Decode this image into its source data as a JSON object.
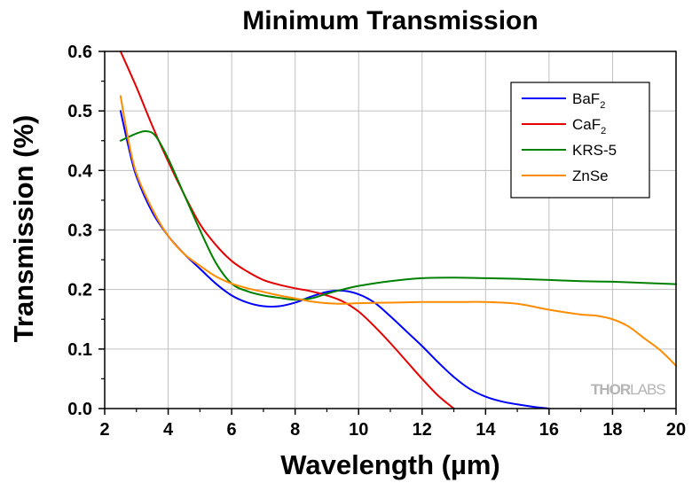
{
  "chart_data": {
    "type": "line",
    "title": "Minimum Transmission",
    "xlabel": "Wavelength (µm)",
    "ylabel": "Transmission (%)",
    "xlim": [
      2,
      20
    ],
    "ylim": [
      0,
      0.6
    ],
    "xticks": [
      "2",
      "4",
      "6",
      "8",
      "10",
      "12",
      "14",
      "16",
      "18",
      "20"
    ],
    "yticks": [
      "0.0",
      "0.1",
      "0.2",
      "0.3",
      "0.4",
      "0.5",
      "0.6"
    ],
    "grid": true,
    "legend_position": "top-right",
    "series": [
      {
        "name": "BaF2",
        "legend_base": "BaF",
        "legend_sub": "2",
        "color": "#0000ff",
        "x": [
          2.5,
          2.75,
          3,
          3.5,
          4,
          4.5,
          5,
          5.5,
          6,
          6.5,
          7,
          7.5,
          8,
          8.5,
          9,
          9.5,
          10,
          10.5,
          11,
          11.5,
          12,
          12.5,
          13,
          13.5,
          14,
          14.5,
          15,
          15.5,
          16
        ],
        "y": [
          0.5,
          0.44,
          0.39,
          0.33,
          0.29,
          0.26,
          0.235,
          0.21,
          0.19,
          0.178,
          0.172,
          0.172,
          0.178,
          0.188,
          0.196,
          0.198,
          0.192,
          0.178,
          0.155,
          0.13,
          0.105,
          0.078,
          0.053,
          0.033,
          0.02,
          0.012,
          0.007,
          0.003,
          0.0
        ]
      },
      {
        "name": "CaF2",
        "legend_base": "CaF",
        "legend_sub": "2",
        "color": "#e60000",
        "x": [
          2.5,
          3,
          3.5,
          4,
          4.5,
          5,
          5.5,
          6,
          6.5,
          7,
          7.5,
          8,
          8.5,
          9,
          9.5,
          10,
          10.5,
          11,
          11.5,
          12,
          12.5,
          13
        ],
        "y": [
          0.6,
          0.54,
          0.475,
          0.415,
          0.36,
          0.31,
          0.275,
          0.248,
          0.23,
          0.216,
          0.208,
          0.202,
          0.197,
          0.19,
          0.18,
          0.163,
          0.138,
          0.11,
          0.08,
          0.05,
          0.022,
          0.0
        ]
      },
      {
        "name": "KRS-5",
        "legend_base": "KRS-5",
        "legend_sub": "",
        "color": "#008000",
        "x": [
          2.5,
          3,
          3.3,
          3.6,
          4,
          4.5,
          5,
          5.5,
          6,
          6.5,
          7,
          7.5,
          8,
          8.5,
          9,
          9.5,
          10,
          11,
          12,
          13,
          14,
          15,
          16,
          17,
          18,
          19,
          20
        ],
        "y": [
          0.45,
          0.462,
          0.466,
          0.458,
          0.42,
          0.36,
          0.3,
          0.245,
          0.21,
          0.197,
          0.19,
          0.186,
          0.183,
          0.185,
          0.193,
          0.2,
          0.206,
          0.214,
          0.219,
          0.22,
          0.219,
          0.218,
          0.216,
          0.214,
          0.213,
          0.211,
          0.209
        ]
      },
      {
        "name": "ZnSe",
        "legend_base": "ZnSe",
        "legend_sub": "",
        "color": "#ff8c00",
        "x": [
          2.5,
          2.75,
          3,
          3.5,
          4,
          4.5,
          5,
          5.5,
          6,
          6.5,
          7,
          7.5,
          8,
          8.5,
          9,
          9.5,
          10,
          11,
          12,
          13,
          14,
          15,
          16,
          17,
          17.5,
          18,
          18.5,
          19,
          19.5,
          20
        ],
        "y": [
          0.525,
          0.45,
          0.395,
          0.335,
          0.29,
          0.26,
          0.24,
          0.222,
          0.21,
          0.202,
          0.196,
          0.19,
          0.185,
          0.18,
          0.177,
          0.176,
          0.177,
          0.178,
          0.179,
          0.179,
          0.179,
          0.176,
          0.166,
          0.158,
          0.156,
          0.15,
          0.138,
          0.118,
          0.098,
          0.072
        ]
      }
    ]
  },
  "watermark": {
    "thor": "THOR",
    "labs": "LABS"
  }
}
